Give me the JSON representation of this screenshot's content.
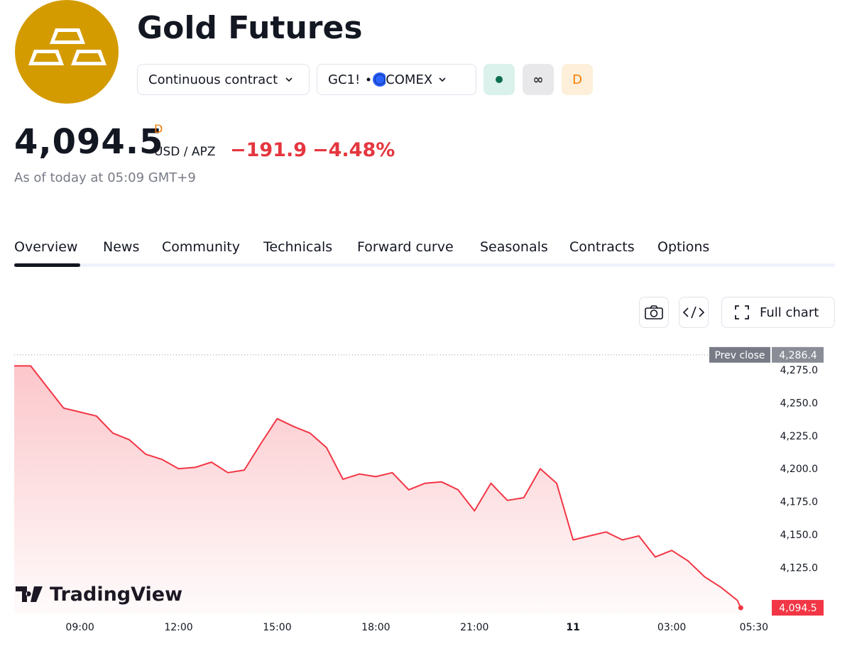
{
  "header": {
    "title": "Gold Futures",
    "contract": "Continuous contract",
    "symbol": "GC1!",
    "exchange": "COMEX",
    "badges": [
      "∞",
      "D"
    ]
  },
  "quote": {
    "price": "4,094.5",
    "price_flag": "D",
    "currency": "USD / APZ",
    "change": "−191.9",
    "change_pct": "−4.48%",
    "as_of": "As of today at 05:09 GMT+9"
  },
  "tabs": [
    "Overview",
    "News",
    "Community",
    "Technicals",
    "Forward curve",
    "Seasonals",
    "Contracts",
    "Options"
  ],
  "toolbar": {
    "full_chart": "Full chart"
  },
  "watermark": "TradingView",
  "chart_data": {
    "type": "area",
    "color": "#f23645",
    "x": [
      7.0,
      7.5,
      8.0,
      8.5,
      9.0,
      9.5,
      10.0,
      10.5,
      11.0,
      11.5,
      12.0,
      12.5,
      13.0,
      13.5,
      14.0,
      14.5,
      15.0,
      15.5,
      16.0,
      16.5,
      17.0,
      17.5,
      18.0,
      18.5,
      19.0,
      19.5,
      20.0,
      20.5,
      21.0,
      21.5,
      22.0,
      22.5,
      23.0,
      23.5,
      24.0,
      24.5,
      25.0,
      25.5,
      26.0,
      26.5,
      27.0,
      27.5,
      28.0,
      28.5,
      29.0,
      29.1
    ],
    "values": [
      4278,
      4278,
      4262,
      4246,
      4243,
      4240,
      4227,
      4222,
      4211,
      4207,
      4200,
      4201,
      4205,
      4197,
      4199,
      4219,
      4238,
      4232,
      4227,
      4216,
      4192,
      4196,
      4194,
      4197,
      4184,
      4189,
      4190,
      4184,
      4168,
      4189,
      4176,
      4178,
      4200,
      4189,
      4146,
      4149,
      4152,
      4146,
      4149,
      4133,
      4138,
      4130,
      4118,
      4110,
      4100,
      4094.5
    ],
    "xlim": [
      7,
      30
    ],
    "xticks": [
      {
        "value": 9,
        "label": "09:00"
      },
      {
        "value": 12,
        "label": "12:00"
      },
      {
        "value": 15,
        "label": "15:00"
      },
      {
        "value": 18,
        "label": "18:00"
      },
      {
        "value": 21,
        "label": "21:00"
      },
      {
        "value": 24,
        "label": "11"
      },
      {
        "value": 27,
        "label": "03:00"
      },
      {
        "value": 29.5,
        "label": "05:30"
      }
    ],
    "ylim": [
      4089.7,
      4291.7
    ],
    "yticks": [
      {
        "value": 4125,
        "label": "4,125.0"
      },
      {
        "value": 4150,
        "label": "4,150.0"
      },
      {
        "value": 4175,
        "label": "4,175.0"
      },
      {
        "value": 4200,
        "label": "4,200.0"
      },
      {
        "value": 4225,
        "label": "4,225.0"
      },
      {
        "value": 4250,
        "label": "4,250.0"
      },
      {
        "value": 4275,
        "label": "4,275.0"
      }
    ],
    "reference_line": {
      "name": "Prev close",
      "value": 4286.4,
      "label": "4,286.4"
    },
    "last_label": {
      "value": 4094.5,
      "label": "4,094.5"
    }
  }
}
